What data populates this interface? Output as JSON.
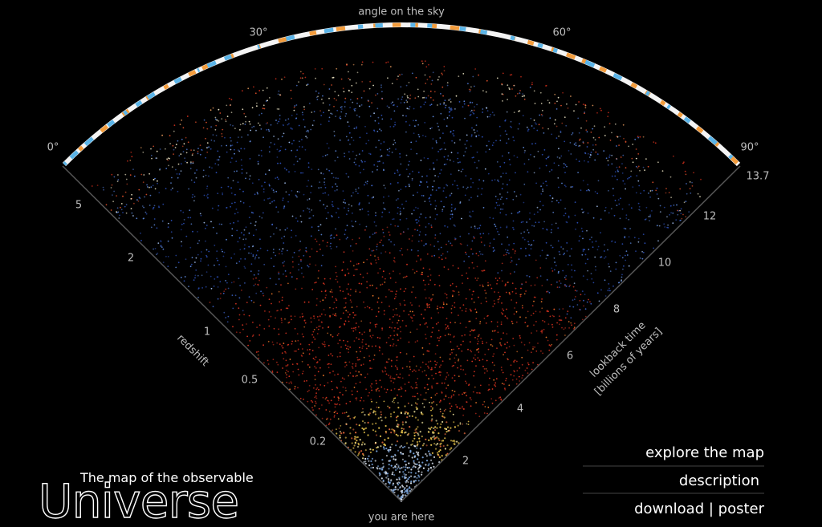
{
  "sky_axis": {
    "label": "angle on the sky",
    "ticks": [
      "0°",
      "30°",
      "60°",
      "90°"
    ]
  },
  "redshift_axis": {
    "label": "redshift",
    "ticks": [
      5,
      2,
      1,
      0.5,
      0.2
    ]
  },
  "lookback_axis": {
    "label": "lookback time",
    "unit": "[billions of years]",
    "ticks": [
      13.7,
      12,
      10,
      8,
      6,
      4,
      2
    ]
  },
  "origin_label": "you are here",
  "logo": {
    "subtitle": "The map of the observable",
    "name": "Universe"
  },
  "menu": [
    "explore the map",
    "description",
    "download | poster"
  ]
}
